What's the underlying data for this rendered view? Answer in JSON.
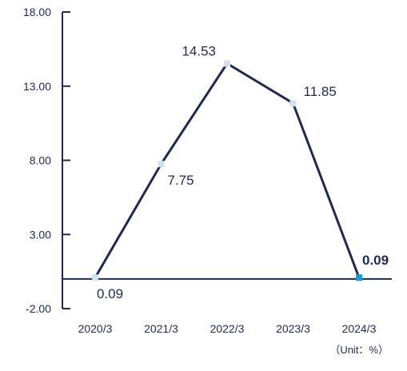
{
  "chart_data": {
    "type": "line",
    "categories": [
      "2020/3",
      "2021/3",
      "2022/3",
      "2023/3",
      "2024/3"
    ],
    "values": [
      0.09,
      7.75,
      14.53,
      11.85,
      0.09
    ],
    "data_labels": [
      "0.09",
      "7.75",
      "14.53",
      "11.85",
      "0.09"
    ],
    "highlight_index": 4,
    "ylim": [
      -2,
      18
    ],
    "y_ticks": [
      -2,
      3,
      8,
      13,
      18
    ],
    "y_tick_labels": [
      "-2.00",
      "3.00",
      "8.00",
      "13.00",
      "18.00"
    ],
    "baseline": 0,
    "unit_note": "（Unit：%）",
    "title": "",
    "xlabel": "",
    "ylabel": "",
    "grid": false,
    "legend": "none",
    "colors": {
      "line": "#1f2a50",
      "axis": "#1f2a50",
      "marker": "#cfe3ee",
      "marker_highlight": "#1a9ad6",
      "text": "#1f2a50"
    }
  }
}
